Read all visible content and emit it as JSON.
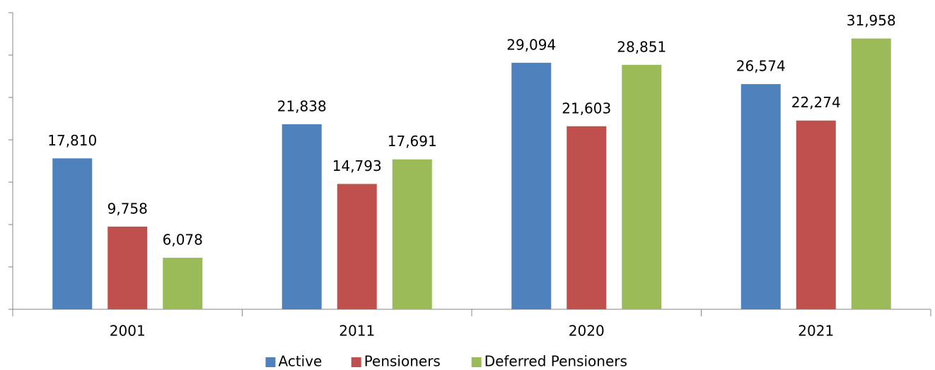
{
  "chart_data": {
    "type": "bar",
    "categories": [
      "2001",
      "2011",
      "2020",
      "2021"
    ],
    "series": [
      {
        "name": "Active",
        "color": "#4f81bd",
        "values": [
          17810,
          21838,
          29094,
          26574
        ],
        "value_labels": [
          "17,810",
          "21,838",
          "29,094",
          "26,574"
        ]
      },
      {
        "name": "Pensioners",
        "color": "#c0504d",
        "values": [
          9758,
          14793,
          21603,
          22274
        ],
        "value_labels": [
          "9,758",
          "14,793",
          "21,603",
          "22,274"
        ]
      },
      {
        "name": "Deferred Pensioners",
        "color": "#9bbb59",
        "values": [
          6078,
          17691,
          28851,
          31958
        ],
        "value_labels": [
          "6,078",
          "17,691",
          "28,851",
          "31,958"
        ]
      }
    ],
    "ylim": [
      0,
      35000
    ],
    "yticks": [
      0,
      5000,
      10000,
      15000,
      20000,
      25000,
      30000,
      35000
    ],
    "legend": "bottom"
  }
}
